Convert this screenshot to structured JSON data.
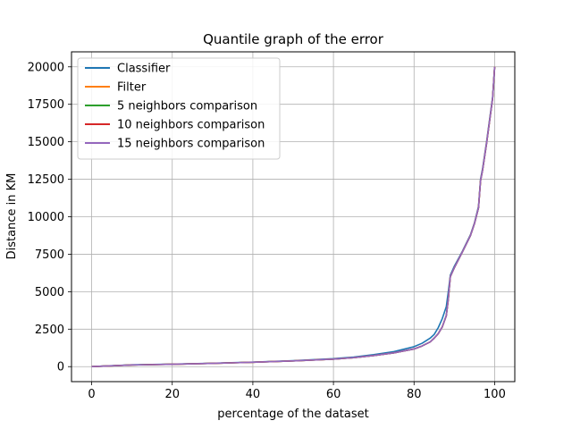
{
  "chart_data": {
    "type": "line",
    "title": "Quantile graph of the error",
    "xlabel": "percentage of the dataset",
    "ylabel": "Distance in KM",
    "xlim": [
      -5,
      105
    ],
    "ylim": [
      -1000,
      21000
    ],
    "xticks": [
      0,
      20,
      40,
      60,
      80,
      100
    ],
    "yticks": [
      0,
      2500,
      5000,
      7500,
      10000,
      12500,
      15000,
      17500,
      20000
    ],
    "grid": true,
    "legend_position": "top-left",
    "series": [
      {
        "name": "Classifier",
        "color": "#1f77b4",
        "x": [
          0,
          5,
          10,
          20,
          30,
          40,
          50,
          60,
          65,
          70,
          75,
          80,
          82,
          84,
          85,
          86,
          87,
          88,
          88.5,
          89,
          90,
          92,
          94,
          95,
          96,
          96.5,
          97,
          98,
          99,
          99.5,
          100
        ],
        "y": [
          0,
          60,
          120,
          170,
          230,
          300,
          400,
          530,
          640,
          800,
          1000,
          1330,
          1560,
          1900,
          2150,
          2600,
          3200,
          4000,
          5000,
          6100,
          6700,
          7700,
          8800,
          9600,
          10700,
          12500,
          13200,
          15000,
          17000,
          18000,
          20000
        ]
      },
      {
        "name": "Filter",
        "color": "#ff7f0e",
        "x": [
          0,
          5,
          10,
          20,
          30,
          40,
          50,
          60,
          65,
          70,
          75,
          80,
          82,
          84,
          85,
          86,
          87,
          88,
          88.5,
          89,
          90,
          92,
          94,
          95,
          96,
          96.5,
          97,
          98,
          99,
          99.5,
          100
        ],
        "y": [
          0,
          55,
          110,
          160,
          220,
          290,
          380,
          500,
          600,
          740,
          920,
          1180,
          1380,
          1650,
          1900,
          2200,
          2650,
          3400,
          4500,
          6000,
          6600,
          7650,
          8750,
          9550,
          10600,
          12400,
          13100,
          14900,
          16900,
          17900,
          20000
        ]
      },
      {
        "name": "5 neighbors comparison",
        "color": "#2ca02c",
        "x": [
          0,
          5,
          10,
          20,
          30,
          40,
          50,
          60,
          65,
          70,
          75,
          80,
          82,
          84,
          85,
          86,
          87,
          88,
          88.5,
          89,
          90,
          92,
          94,
          95,
          96,
          96.5,
          97,
          98,
          99,
          99.5,
          100
        ],
        "y": [
          0,
          55,
          110,
          160,
          220,
          290,
          380,
          500,
          600,
          740,
          920,
          1180,
          1380,
          1650,
          1900,
          2200,
          2650,
          3400,
          4500,
          6000,
          6600,
          7650,
          8750,
          9550,
          10600,
          12400,
          13100,
          14900,
          16900,
          17900,
          20000
        ]
      },
      {
        "name": "10 neighbors comparison",
        "color": "#d62728",
        "x": [
          0,
          5,
          10,
          20,
          30,
          40,
          50,
          60,
          65,
          70,
          75,
          80,
          82,
          84,
          85,
          86,
          87,
          88,
          88.5,
          89,
          90,
          92,
          94,
          95,
          96,
          96.5,
          97,
          98,
          99,
          99.5,
          100
        ],
        "y": [
          0,
          55,
          110,
          160,
          220,
          290,
          380,
          500,
          600,
          740,
          920,
          1180,
          1380,
          1650,
          1900,
          2200,
          2650,
          3400,
          4500,
          6000,
          6600,
          7650,
          8750,
          9550,
          10600,
          12400,
          13100,
          14900,
          16900,
          17900,
          20000
        ]
      },
      {
        "name": "15 neighbors comparison",
        "color": "#9467bd",
        "x": [
          0,
          5,
          10,
          20,
          30,
          40,
          50,
          60,
          65,
          70,
          75,
          80,
          82,
          84,
          85,
          86,
          87,
          88,
          88.5,
          89,
          90,
          92,
          94,
          95,
          96,
          96.5,
          97,
          98,
          99,
          99.5,
          100
        ],
        "y": [
          0,
          55,
          110,
          160,
          220,
          290,
          380,
          500,
          600,
          740,
          920,
          1180,
          1380,
          1650,
          1900,
          2200,
          2650,
          3400,
          4500,
          6000,
          6600,
          7650,
          8750,
          9550,
          10600,
          12400,
          13100,
          14900,
          16900,
          17900,
          20000
        ]
      }
    ]
  }
}
